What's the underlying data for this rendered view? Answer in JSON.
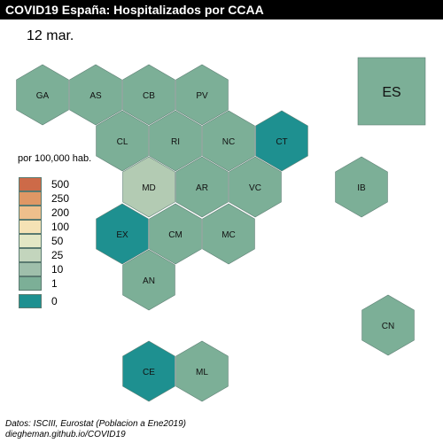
{
  "title": "COVID19 España: Hospitalizados por CCAA",
  "date": "12 mar.",
  "legend": {
    "title": "por 100,000 hab.",
    "items": [
      {
        "label": "500",
        "color": "#cd6a48"
      },
      {
        "label": "250",
        "color": "#df9765"
      },
      {
        "label": "200",
        "color": "#eebf8c"
      },
      {
        "label": "100",
        "color": "#f5e2b5"
      },
      {
        "label": "50",
        "color": "#e3e7c5"
      },
      {
        "label": "25",
        "color": "#c3d5bd"
      },
      {
        "label": "10",
        "color": "#9fbfab"
      },
      {
        "label": "1",
        "color": "#7caf97"
      },
      {
        "label": "0",
        "color": "#1e9090"
      }
    ]
  },
  "regions": [
    {
      "code": "GA",
      "color": "#7caf97"
    },
    {
      "code": "AS",
      "color": "#7caf97"
    },
    {
      "code": "CB",
      "color": "#7caf97"
    },
    {
      "code": "PV",
      "color": "#7caf97"
    },
    {
      "code": "CL",
      "color": "#7caf97"
    },
    {
      "code": "RI",
      "color": "#7caf97"
    },
    {
      "code": "NC",
      "color": "#7caf97"
    },
    {
      "code": "CT",
      "color": "#1e9090"
    },
    {
      "code": "MD",
      "color": "#b3cbb3"
    },
    {
      "code": "AR",
      "color": "#7caf97"
    },
    {
      "code": "VC",
      "color": "#7caf97"
    },
    {
      "code": "IB",
      "color": "#7caf97"
    },
    {
      "code": "EX",
      "color": "#1e9090"
    },
    {
      "code": "CM",
      "color": "#7caf97"
    },
    {
      "code": "MC",
      "color": "#7caf97"
    },
    {
      "code": "AN",
      "color": "#7caf97"
    },
    {
      "code": "CN",
      "color": "#7caf97"
    },
    {
      "code": "CE",
      "color": "#1e9090"
    },
    {
      "code": "ML",
      "color": "#7caf97"
    }
  ],
  "total": {
    "code": "ES",
    "color": "#7caf97"
  },
  "credits": {
    "line1": "Datos: ISCIII, Eurostat (Poblacion a Ene2019)",
    "line2": "diegheman.github.io/COVID19"
  }
}
